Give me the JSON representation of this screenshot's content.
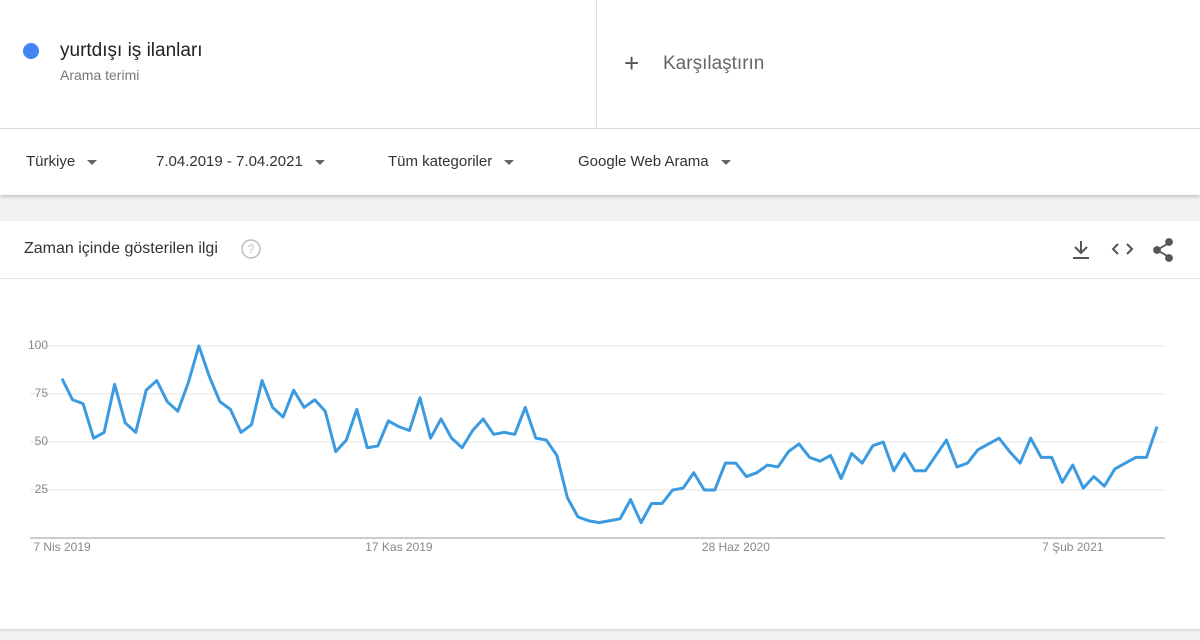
{
  "search_term": {
    "label": "yurtdışı iş ilanları",
    "sublabel": "Arama terimi"
  },
  "compare": "Karşılaştırın",
  "filters": [
    "Türkiye",
    "7.04.2019 - 7.04.2021",
    "Tüm kategoriler",
    "Google Web Arama"
  ],
  "chart_data": {
    "type": "line",
    "title": "Zaman içinde gösterilen ilgi",
    "color": "#3c9be0",
    "grid": true,
    "categories": [
      "7 Nis 2019",
      null,
      null,
      null,
      null,
      null,
      null,
      null,
      null,
      null,
      null,
      null,
      null,
      null,
      null,
      null,
      null,
      null,
      null,
      null,
      null,
      null,
      null,
      null,
      null,
      null,
      null,
      null,
      null,
      null,
      null,
      null,
      "17 Kas 2019",
      null,
      null,
      null,
      null,
      null,
      null,
      null,
      null,
      null,
      null,
      null,
      null,
      null,
      null,
      null,
      null,
      null,
      null,
      null,
      null,
      null,
      null,
      null,
      null,
      null,
      null,
      null,
      null,
      null,
      null,
      null,
      "28 Haz 2020",
      null,
      null,
      null,
      null,
      null,
      null,
      null,
      null,
      null,
      null,
      null,
      null,
      null,
      null,
      null,
      null,
      null,
      null,
      null,
      null,
      null,
      null,
      null,
      null,
      null,
      null,
      null,
      null,
      null,
      null,
      null,
      "7 Şub 2021",
      null,
      null,
      null,
      null,
      null,
      null,
      null,
      null
    ],
    "values": [
      83,
      72,
      70,
      52,
      55,
      80,
      60,
      55,
      77,
      82,
      71,
      66,
      81,
      100,
      84,
      71,
      67,
      55,
      59,
      82,
      68,
      63,
      77,
      68,
      72,
      66,
      45,
      51,
      67,
      47,
      48,
      61,
      58,
      56,
      73,
      52,
      62,
      52,
      47,
      56,
      62,
      54,
      55,
      54,
      68,
      52,
      51,
      43,
      21,
      11,
      9,
      8,
      9,
      10,
      20,
      8,
      18,
      18,
      25,
      26,
      34,
      25,
      25,
      39,
      39,
      32,
      34,
      38,
      37,
      45,
      49,
      42,
      40,
      43,
      31,
      44,
      39,
      48,
      50,
      35,
      44,
      35,
      35,
      43,
      51,
      37,
      39,
      46,
      49,
      52,
      45,
      39,
      52,
      42,
      42,
      29,
      38,
      26,
      32,
      27,
      36,
      39,
      42,
      42,
      58
    ],
    "ylim": [
      0,
      100
    ],
    "yticks": [
      25,
      50,
      75,
      100
    ]
  }
}
